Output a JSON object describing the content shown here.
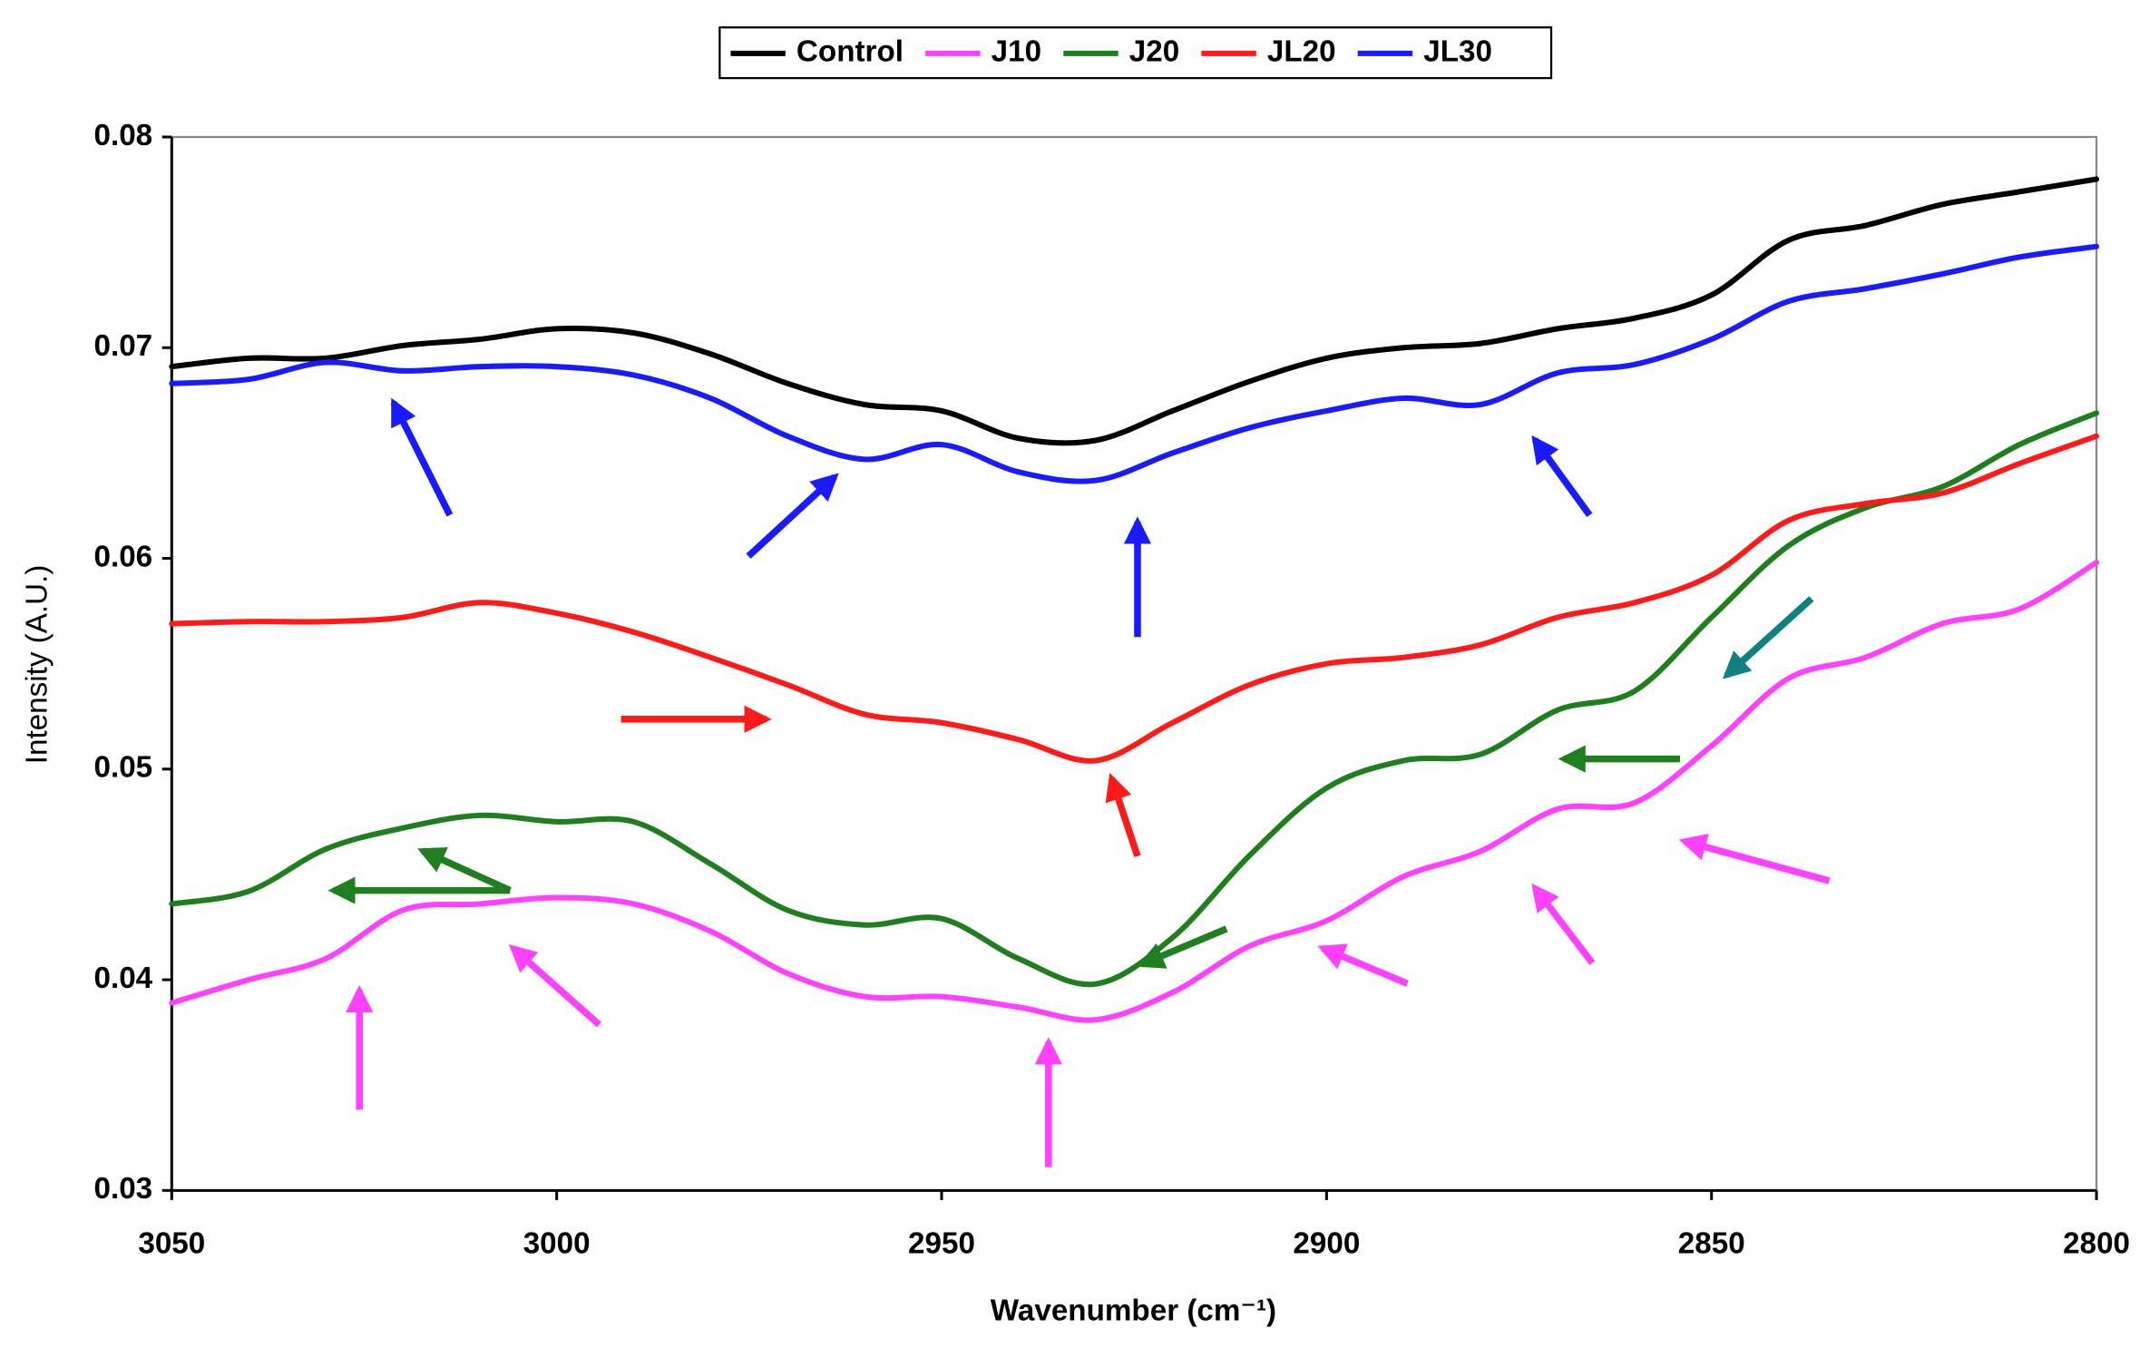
{
  "chart_data": {
    "type": "line",
    "x_label": "Wavenumber (cm⁻¹)",
    "y_label": "Intensity (A.U.)",
    "x": [
      3050,
      3040,
      3030,
      3020,
      3010,
      3000,
      2990,
      2980,
      2970,
      2960,
      2950,
      2940,
      2930,
      2920,
      2910,
      2900,
      2890,
      2880,
      2870,
      2860,
      2850,
      2840,
      2830,
      2820,
      2810,
      2800
    ],
    "series": [
      {
        "name": "Control",
        "color": "#000000",
        "values": [
          0.0691,
          0.0695,
          0.0695,
          0.0701,
          0.0704,
          0.0709,
          0.0707,
          0.0697,
          0.0683,
          0.0673,
          0.067,
          0.0657,
          0.0656,
          0.067,
          0.0684,
          0.0695,
          0.07,
          0.0702,
          0.0709,
          0.0714,
          0.0725,
          0.0751,
          0.0758,
          0.0768,
          0.0774,
          0.078
        ]
      },
      {
        "name": "J10",
        "color": "#ff40ff",
        "values": [
          0.0389,
          0.04,
          0.041,
          0.0433,
          0.0436,
          0.0439,
          0.0436,
          0.0423,
          0.0403,
          0.0392,
          0.0392,
          0.0387,
          0.0381,
          0.0394,
          0.0416,
          0.0428,
          0.0449,
          0.0461,
          0.0481,
          0.0484,
          0.0511,
          0.0543,
          0.0553,
          0.0569,
          0.0576,
          0.0598
        ]
      },
      {
        "name": "J20",
        "color": "#1f7f1f",
        "values": [
          0.0436,
          0.0442,
          0.0462,
          0.0472,
          0.0478,
          0.0475,
          0.0475,
          0.0455,
          0.0433,
          0.0426,
          0.0429,
          0.041,
          0.0398,
          0.042,
          0.0459,
          0.0491,
          0.0504,
          0.0507,
          0.0528,
          0.0537,
          0.0572,
          0.0606,
          0.0624,
          0.0634,
          0.0654,
          0.0669
        ]
      },
      {
        "name": "JL20",
        "color": "#ff1a1a",
        "values": [
          0.0569,
          0.057,
          0.057,
          0.0572,
          0.0579,
          0.0574,
          0.0565,
          0.0553,
          0.054,
          0.0526,
          0.0522,
          0.0514,
          0.0504,
          0.0522,
          0.054,
          0.055,
          0.0553,
          0.0559,
          0.0572,
          0.0579,
          0.0592,
          0.0618,
          0.0626,
          0.0631,
          0.0645,
          0.0658
        ]
      },
      {
        "name": "JL30",
        "color": "#1a1aff",
        "values": [
          0.0683,
          0.0685,
          0.0693,
          0.0689,
          0.0691,
          0.0691,
          0.0687,
          0.0676,
          0.0658,
          0.0647,
          0.0654,
          0.0641,
          0.0637,
          0.065,
          0.0662,
          0.067,
          0.0676,
          0.0673,
          0.0688,
          0.0692,
          0.0704,
          0.0722,
          0.0728,
          0.0735,
          0.0743,
          0.0748
        ]
      }
    ],
    "xlim": [
      3050,
      2800
    ],
    "xticks": [
      3050,
      3000,
      2950,
      2900,
      2850,
      2800
    ],
    "ylim": [
      0.03,
      0.08
    ],
    "yticks": [
      0.03,
      0.04,
      0.05,
      0.06,
      0.07,
      0.08
    ],
    "legend": "top"
  }
}
